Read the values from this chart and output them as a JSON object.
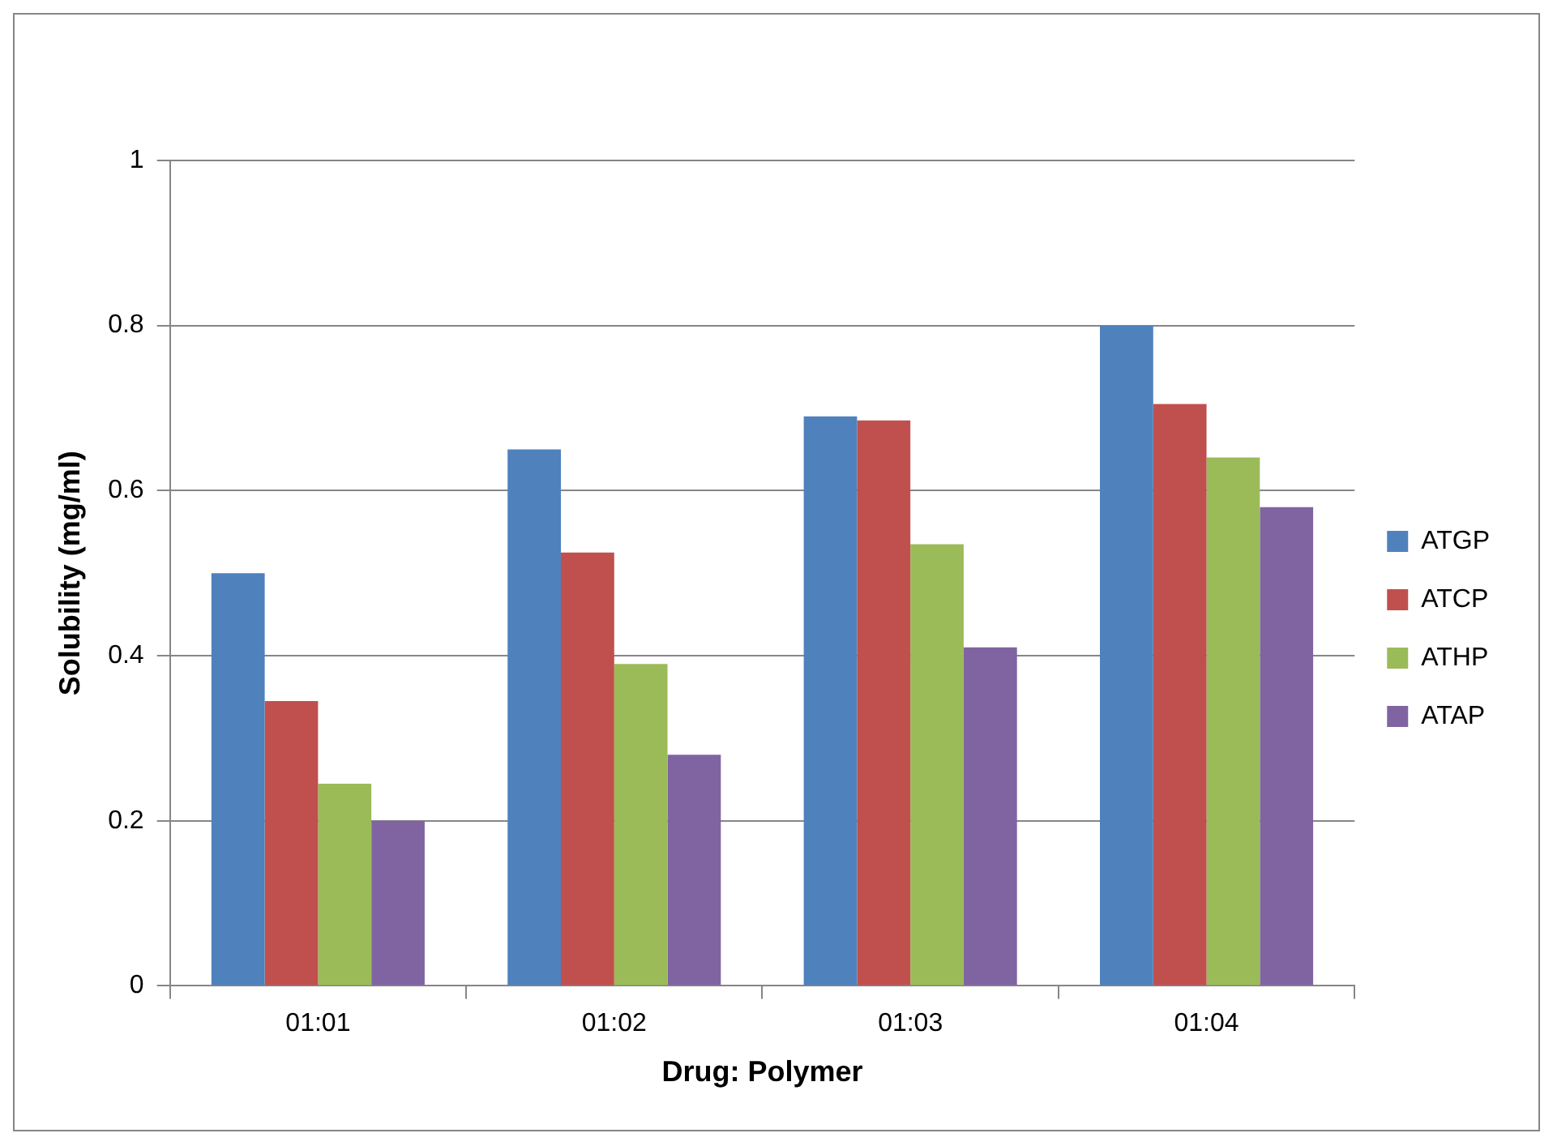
{
  "chart_data": {
    "type": "bar",
    "xlabel": "Drug: Polymer",
    "ylabel": "Solubility (mg/ml)",
    "categories": [
      "01:01",
      "01:02",
      "01:03",
      "01:04"
    ],
    "series": [
      {
        "name": "ATGP",
        "color": "#4f81bd",
        "values": [
          0.5,
          0.65,
          0.69,
          0.8
        ]
      },
      {
        "name": "ATCP",
        "color": "#c0504d",
        "values": [
          0.345,
          0.525,
          0.685,
          0.705
        ]
      },
      {
        "name": "ATHP",
        "color": "#9bbb59",
        "values": [
          0.245,
          0.39,
          0.535,
          0.64
        ]
      },
      {
        "name": "ATAP",
        "color": "#8064a2",
        "values": [
          0.2,
          0.28,
          0.41,
          0.58
        ]
      }
    ],
    "ylim": [
      0,
      1
    ],
    "yticks": [
      0,
      0.2,
      0.4,
      0.6,
      0.8,
      1
    ],
    "grid": "y",
    "legend": "right"
  }
}
